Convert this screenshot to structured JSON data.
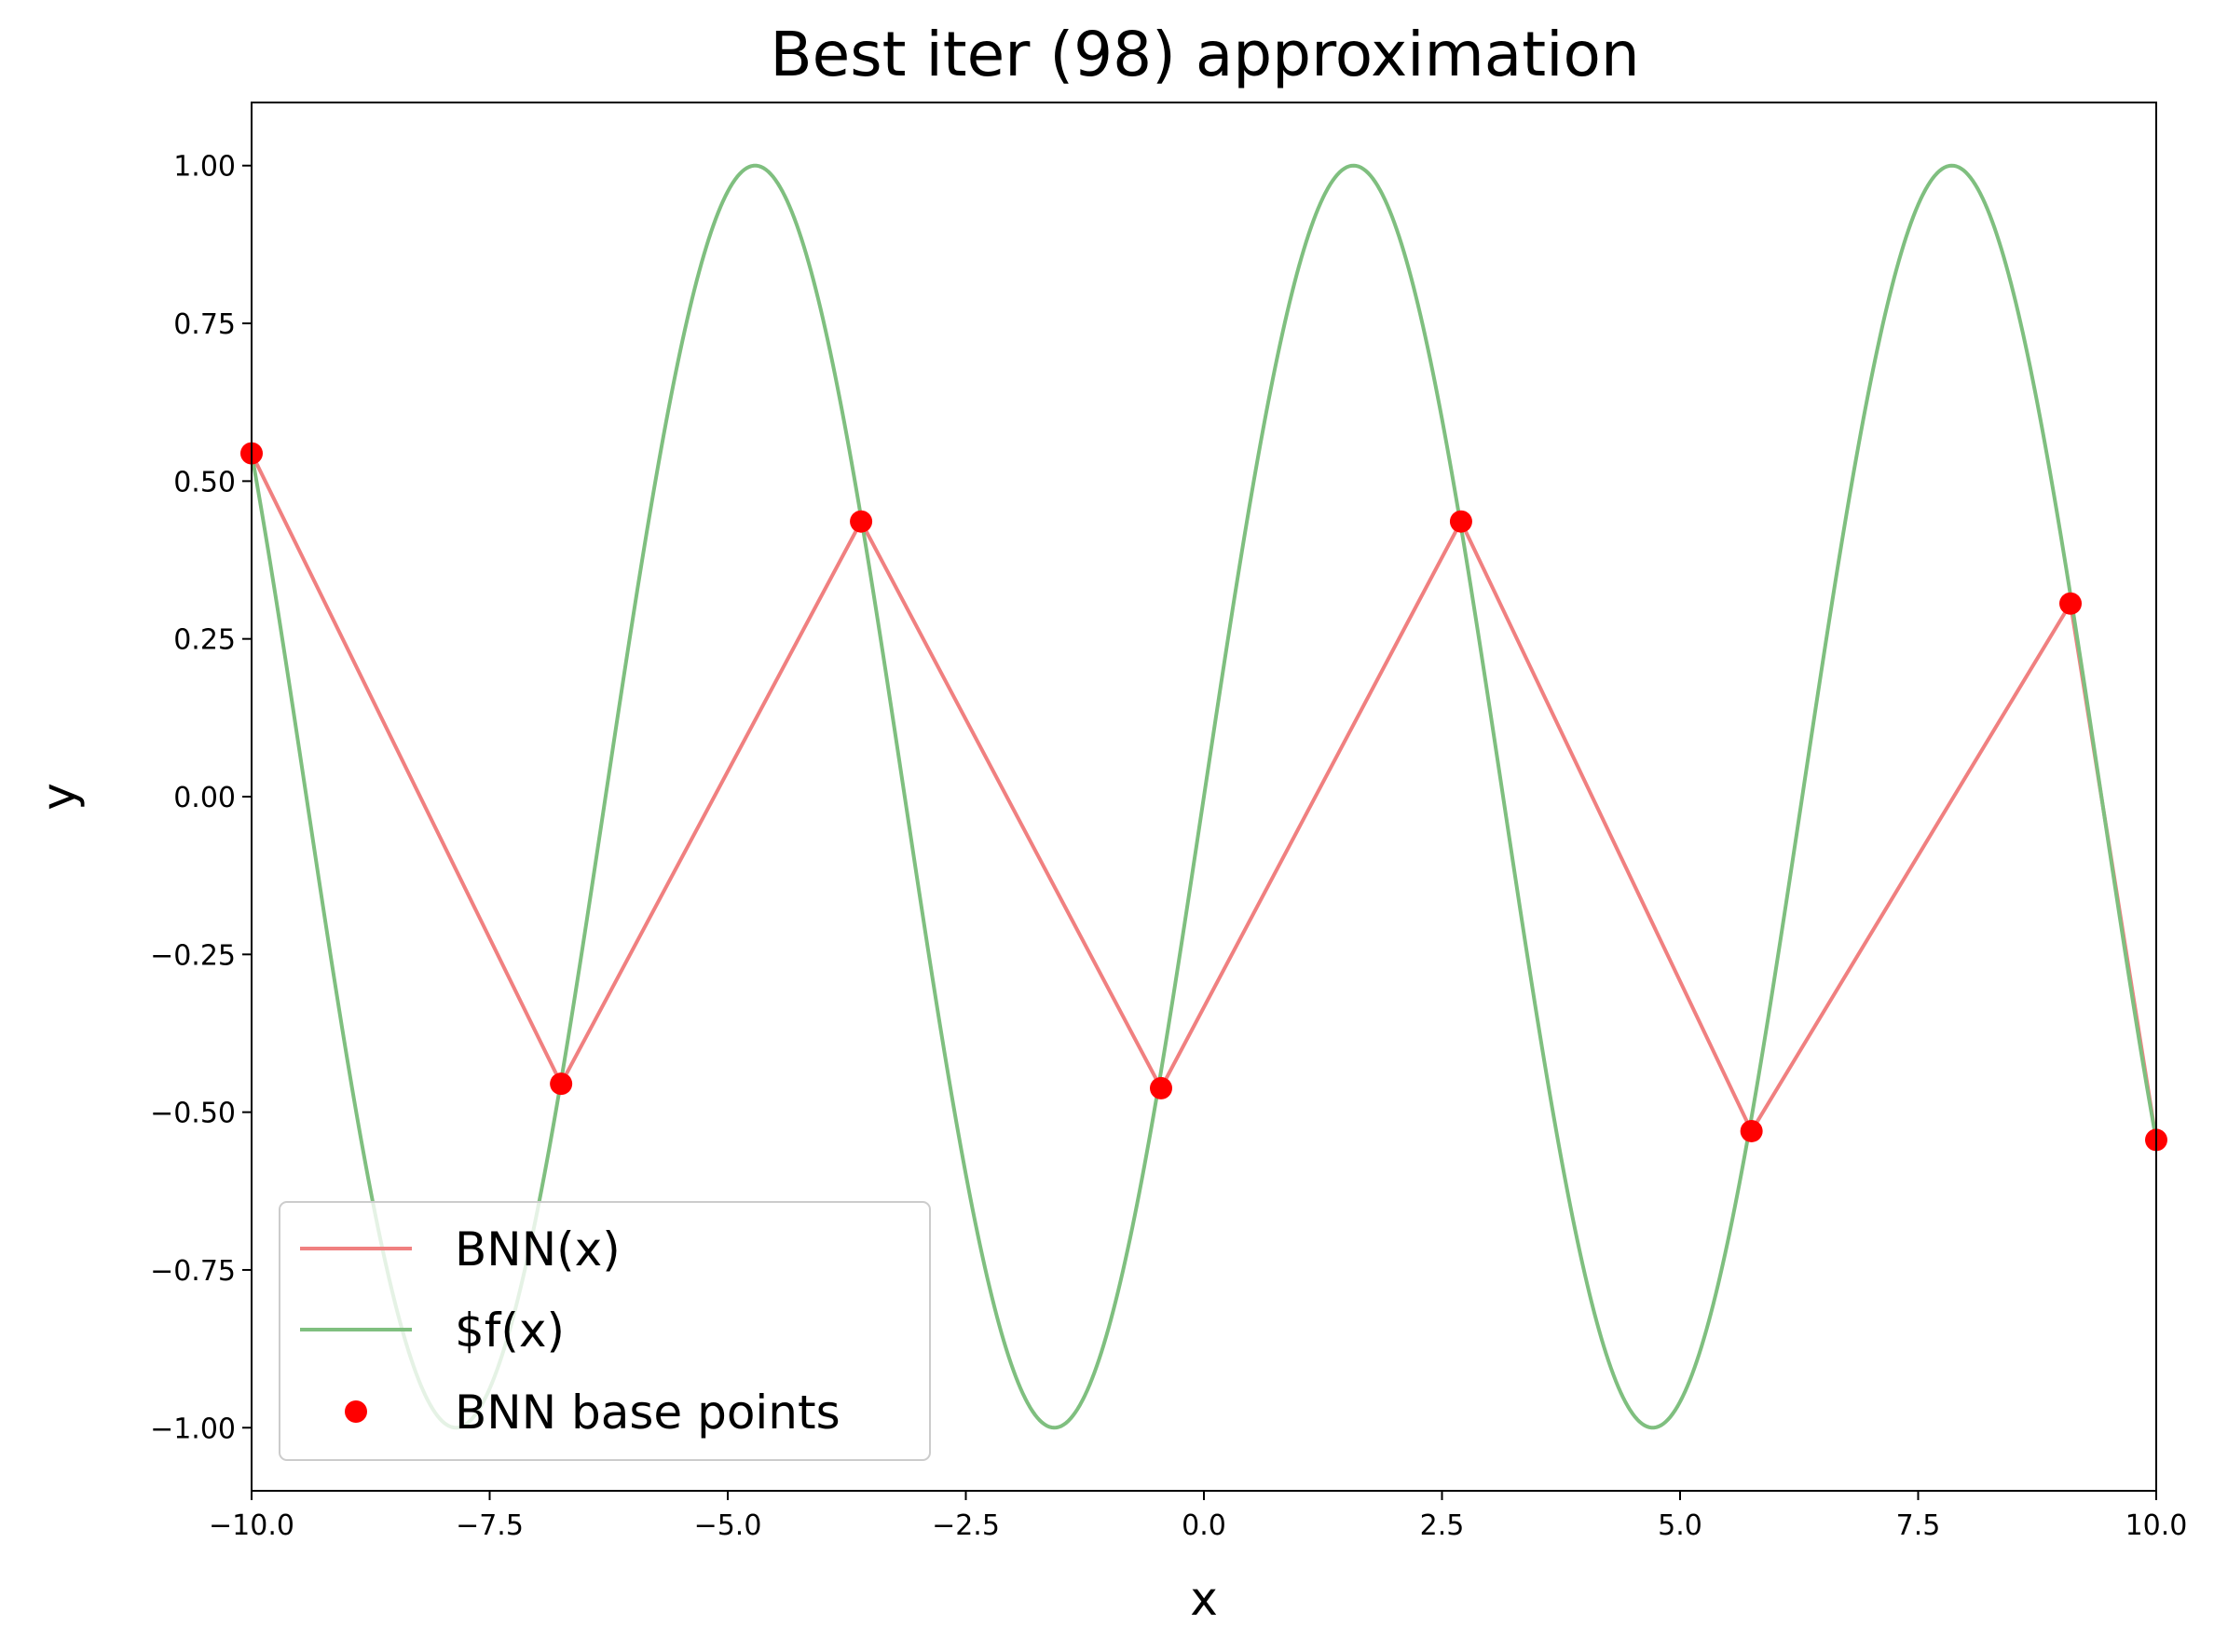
{
  "chart_data": {
    "type": "line",
    "title": "Best iter (98) approximation",
    "xlabel": "x",
    "ylabel": "y",
    "xlim": [
      -10.0,
      10.0
    ],
    "ylim": [
      -1.1,
      1.1
    ],
    "xticks": [
      -10.0,
      -7.5,
      -5.0,
      -2.5,
      0.0,
      2.5,
      5.0,
      7.5,
      10.0
    ],
    "xtick_labels": [
      "−10.0",
      "−7.5",
      "−5.0",
      "−2.5",
      "0.0",
      "2.5",
      "5.0",
      "7.5",
      "10.0"
    ],
    "yticks": [
      1.0,
      0.75,
      0.5,
      0.25,
      0.0,
      -0.25,
      -0.5,
      -0.75,
      -1.0
    ],
    "ytick_labels": [
      "1.00",
      "0.75",
      "0.50",
      "0.25",
      "0.00",
      "−0.25",
      "−0.50",
      "−0.75",
      "−1.00"
    ],
    "grid": false,
    "legend_position": "lower-left",
    "series": [
      {
        "name": "BNN(x)",
        "kind": "line",
        "color": "#f08080",
        "x": [
          -10.0,
          -6.75,
          -3.6,
          -0.45,
          2.7,
          5.75,
          9.1,
          10.0
        ],
        "y": [
          0.544,
          -0.455,
          0.436,
          -0.462,
          0.436,
          -0.53,
          0.306,
          -0.544
        ]
      },
      {
        "name": "$f(x)",
        "kind": "line",
        "color": "#7fbf7f",
        "function": "sin",
        "x_range": [
          -10.0,
          10.0
        ]
      },
      {
        "name": "BNN base points",
        "kind": "scatter",
        "color": "#ff0000",
        "x": [
          -10.0,
          -6.75,
          -3.6,
          -0.45,
          2.7,
          5.75,
          9.1,
          10.0
        ],
        "y": [
          0.544,
          -0.455,
          0.436,
          -0.462,
          0.436,
          -0.53,
          0.306,
          -0.544
        ]
      }
    ]
  }
}
